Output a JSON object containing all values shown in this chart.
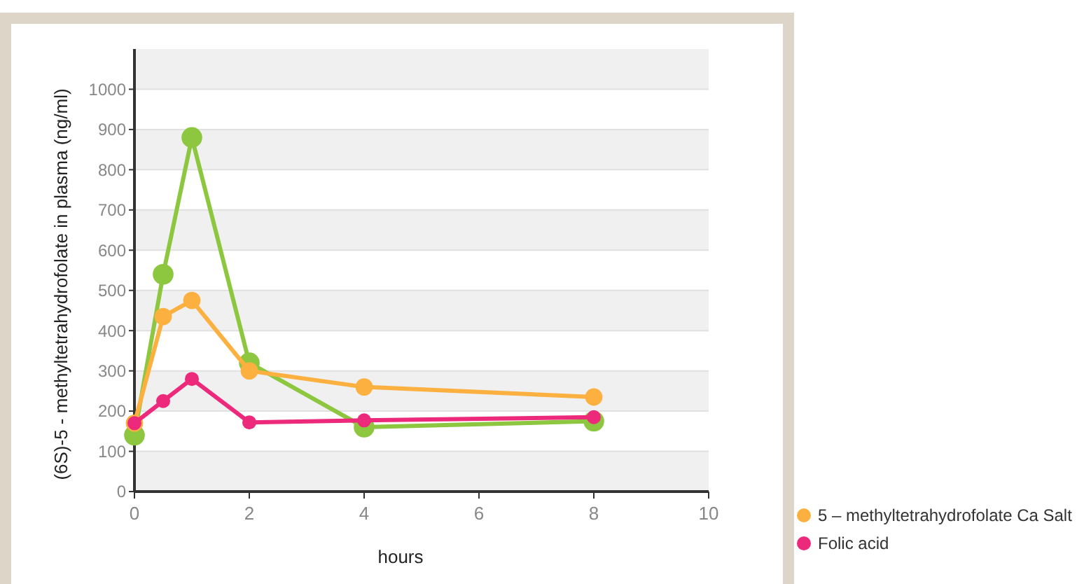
{
  "chart_data": {
    "type": "line",
    "xlabel": "hours",
    "ylabel": "(6S)-5 - methyltetrahydrofolate in plasma (ng/ml)",
    "x": [
      0,
      0.5,
      1,
      2,
      4,
      8
    ],
    "series": [
      {
        "color": "#8dc63f",
        "values": [
          140,
          540,
          880,
          320,
          160,
          175
        ]
      },
      {
        "name": "5 – methyltetrahydrofolate Ca Salt",
        "color": "#fbb040",
        "values": [
          170,
          435,
          475,
          300,
          260,
          235
        ]
      },
      {
        "name": "Folic acid",
        "color": "#ec297b",
        "values": [
          170,
          225,
          280,
          172,
          177,
          185
        ]
      }
    ],
    "xlim": [
      0,
      10
    ],
    "xticks": [
      0,
      2,
      4,
      6,
      8,
      10
    ],
    "ylim": [
      0,
      1100
    ],
    "yticks": [
      0,
      100,
      200,
      300,
      400,
      500,
      600,
      700,
      800,
      900,
      1000
    ],
    "grid": "y",
    "legend": "bottom right",
    "marker": "circle",
    "line_style": "solid"
  }
}
